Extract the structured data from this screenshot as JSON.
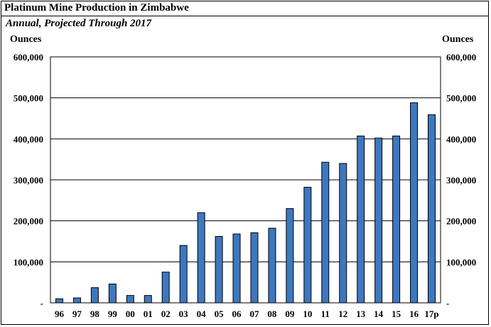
{
  "chart_data": {
    "type": "bar",
    "title": "Platinum Mine Production in Zimbabwe",
    "subtitle": "Annual, Projected Through 2017",
    "ylabel_left": "Ounces",
    "ylabel_right": "Ounces",
    "ylim": [
      0,
      600000
    ],
    "yticks": [
      "-",
      "100,000",
      "200,000",
      "300,000",
      "400,000",
      "500,000",
      "600,000"
    ],
    "ytick_values": [
      0,
      100000,
      200000,
      300000,
      400000,
      500000,
      600000
    ],
    "categories": [
      "96",
      "97",
      "98",
      "99",
      "00",
      "01",
      "02",
      "03",
      "04",
      "05",
      "06",
      "07",
      "08",
      "09",
      "10",
      "11",
      "12",
      "13",
      "14",
      "15",
      "16",
      "17p"
    ],
    "values": [
      10000,
      12000,
      37000,
      46000,
      18000,
      18000,
      75000,
      140000,
      220000,
      162000,
      168000,
      171000,
      182000,
      230000,
      282000,
      343000,
      340000,
      407000,
      402000,
      407000,
      488000,
      459000
    ],
    "grid": true,
    "bar_color": "#3d78bf",
    "bar_edge_color": "#000000"
  }
}
